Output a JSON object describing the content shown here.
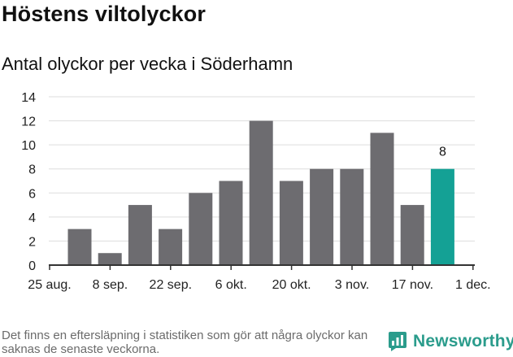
{
  "title": "Höstens viltolyckor",
  "subtitle": "Antal olyckor per vecka i Söderhamn",
  "footnote": "Det finns en eftersläpning i statistiken som gör att några olyckor kan saknas de senaste veckorna.",
  "brand": {
    "name": "Newsworthy",
    "icon": "newsworthy-bar-chart-icon",
    "color": "#2b9c8c"
  },
  "chart_data": {
    "type": "bar",
    "title": "Höstens viltolyckor",
    "subtitle": "Antal olyckor per vecka i Söderhamn",
    "xlabel": "",
    "ylabel": "",
    "ylim": [
      0,
      14
    ],
    "y_ticks": [
      0,
      2,
      4,
      6,
      8,
      10,
      12,
      14
    ],
    "grid": true,
    "x_tick_labels": [
      "25 aug.",
      "8 sep.",
      "22 sep.",
      "6 okt.",
      "20 okt.",
      "3 nov.",
      "17 nov.",
      "1 dec."
    ],
    "values": [
      3,
      1,
      5,
      3,
      6,
      7,
      12,
      7,
      8,
      8,
      11,
      5,
      8
    ],
    "highlight_index": 12,
    "highlight_label": "8",
    "colors": {
      "bar": "#6d6c70",
      "highlight": "#14a195",
      "grid": "#dddddd",
      "axis": "#333333"
    }
  }
}
